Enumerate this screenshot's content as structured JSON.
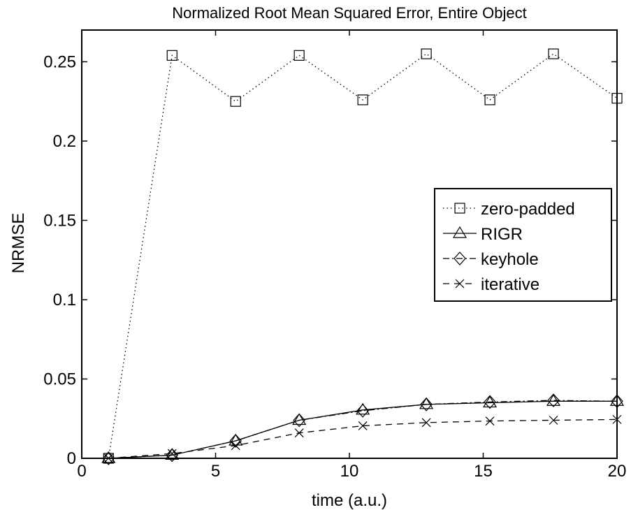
{
  "chart_data": {
    "type": "line",
    "title": "Normalized Root Mean Squared Error, Entire Object",
    "xlabel": "time (a.u.)",
    "ylabel": "NRMSE",
    "xlim": [
      0,
      20
    ],
    "ylim": [
      0,
      0.27
    ],
    "xticks": [
      0,
      5,
      10,
      15,
      20
    ],
    "xtick_labels": [
      "0",
      "5",
      "10",
      "15",
      "20"
    ],
    "yticks": [
      0,
      0.05,
      0.1,
      0.15,
      0.2,
      0.25
    ],
    "ytick_labels": [
      "0",
      "0.05",
      "0.1",
      "0.15",
      "0.2",
      "0.25"
    ],
    "grid": false,
    "legend_position": "right",
    "x": [
      1,
      3.375,
      5.75,
      8.125,
      10.5,
      12.875,
      15.25,
      17.625,
      20
    ],
    "series": [
      {
        "name": "zero-padded",
        "line": "dotted",
        "marker": "square",
        "values": [
          0,
          0.254,
          0.225,
          0.254,
          0.226,
          0.255,
          0.226,
          0.255,
          0.227
        ]
      },
      {
        "name": "RIGR",
        "line": "solid",
        "marker": "triangle",
        "values": [
          0,
          0.002,
          0.011,
          0.024,
          0.0305,
          0.034,
          0.035,
          0.036,
          0.036
        ]
      },
      {
        "name": "keyhole",
        "line": "dashdot",
        "marker": "diamond",
        "values": [
          0,
          0.002,
          0.011,
          0.024,
          0.03,
          0.034,
          0.0355,
          0.0365,
          0.036
        ]
      },
      {
        "name": "iterative",
        "line": "dashed",
        "marker": "x",
        "values": [
          0,
          0.003,
          0.008,
          0.016,
          0.0205,
          0.0225,
          0.0235,
          0.024,
          0.0245
        ]
      }
    ]
  }
}
